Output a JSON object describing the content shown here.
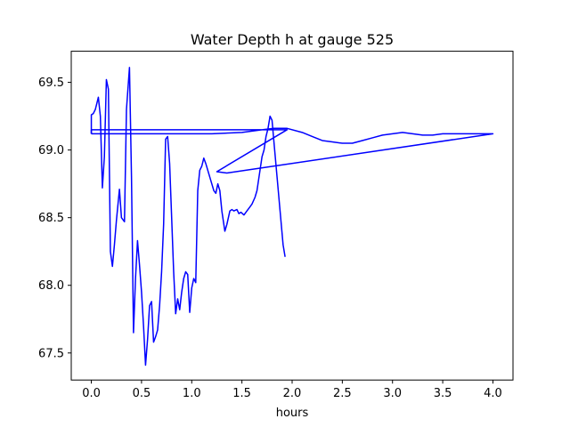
{
  "chart_data": {
    "type": "line",
    "title": "Water Depth h at gauge 525",
    "xlabel": "hours",
    "ylabel": "",
    "xlim": [
      -0.2,
      4.2
    ],
    "ylim": [
      67.3,
      69.73
    ],
    "xticks": [
      0.0,
      0.5,
      1.0,
      1.5,
      2.0,
      2.5,
      3.0,
      3.5,
      4.0
    ],
    "xtick_labels": [
      "0.0",
      "0.5",
      "1.0",
      "1.5",
      "2.0",
      "2.5",
      "3.0",
      "3.5",
      "4.0"
    ],
    "yticks": [
      67.5,
      68.0,
      68.5,
      69.0,
      69.5
    ],
    "ytick_labels": [
      "67.5",
      "68.0",
      "68.5",
      "69.0",
      "69.5"
    ],
    "grid": false,
    "legend": "none",
    "series": [
      {
        "color": "#0000ff",
        "x": [
          0.0,
          0.0,
          0.02,
          0.04,
          0.07,
          0.09,
          0.11,
          0.13,
          0.15,
          0.17,
          0.19,
          0.21,
          0.23,
          0.25,
          0.28,
          0.3,
          0.33,
          0.35,
          0.38,
          0.4,
          0.42,
          0.44,
          0.46,
          0.48,
          0.5,
          0.52,
          0.54,
          0.56,
          0.58,
          0.6,
          0.62,
          0.64,
          0.66,
          0.68,
          0.7,
          0.72,
          0.74,
          0.76,
          0.78,
          0.8,
          0.82,
          0.84,
          0.86,
          0.88,
          0.9,
          0.92,
          0.94,
          0.96,
          0.98,
          1.0,
          1.02,
          1.04,
          1.06,
          1.08,
          1.1,
          1.12,
          1.14,
          1.16,
          1.18,
          1.2,
          1.22,
          1.24,
          1.26,
          1.28,
          1.3,
          1.33,
          1.35,
          1.38,
          1.4,
          1.42,
          1.45,
          1.47,
          1.49,
          1.52,
          1.55,
          1.58,
          1.6,
          1.63,
          1.65,
          1.68,
          1.7,
          1.72,
          1.74,
          1.76,
          1.78,
          1.8,
          1.82,
          1.85,
          1.88,
          1.91,
          1.93
        ],
        "y": [
          69.12,
          69.26,
          69.27,
          69.3,
          69.39,
          69.25,
          68.72,
          68.95,
          69.52,
          69.45,
          68.25,
          68.14,
          68.3,
          68.48,
          68.71,
          68.5,
          68.47,
          69.3,
          69.61,
          68.8,
          67.65,
          68.05,
          68.33,
          68.15,
          67.95,
          67.7,
          67.41,
          67.6,
          67.85,
          67.88,
          67.58,
          67.62,
          67.67,
          67.85,
          68.1,
          68.45,
          69.08,
          69.1,
          68.9,
          68.5,
          68.1,
          67.79,
          67.9,
          67.82,
          67.95,
          68.05,
          68.1,
          68.08,
          67.8,
          67.98,
          68.05,
          68.02,
          68.7,
          68.85,
          68.88,
          68.94,
          68.9,
          68.85,
          68.8,
          68.75,
          68.7,
          68.68,
          68.75,
          68.7,
          68.55,
          68.4,
          68.45,
          68.55,
          68.56,
          68.55,
          68.56,
          68.53,
          68.54,
          68.52,
          68.55,
          68.58,
          68.6,
          68.65,
          68.7,
          68.85,
          68.95,
          69.0,
          69.1,
          69.16,
          69.25,
          69.22,
          69.05,
          68.8,
          68.55,
          68.3,
          68.21
        ]
      },
      {
        "color": "#0000ff",
        "x": [
          0.0,
          0.3,
          0.6,
          0.9,
          1.2,
          1.5,
          1.7,
          1.82,
          1.95,
          2.1,
          2.2,
          2.3,
          2.4,
          2.5,
          2.6,
          2.7,
          2.8,
          2.9,
          3.0,
          3.1,
          3.2,
          3.3,
          3.4,
          3.5,
          3.6,
          3.7,
          3.8,
          3.9,
          4.0,
          1.35,
          1.25,
          1.95,
          0.0,
          0.0
        ],
        "y": [
          69.12,
          69.12,
          69.12,
          69.12,
          69.12,
          69.13,
          69.15,
          69.16,
          69.16,
          69.13,
          69.1,
          69.07,
          69.06,
          69.05,
          69.05,
          69.07,
          69.09,
          69.11,
          69.12,
          69.13,
          69.12,
          69.11,
          69.11,
          69.12,
          69.12,
          69.12,
          69.12,
          69.12,
          69.12,
          68.83,
          68.84,
          69.15,
          69.15,
          69.12
        ]
      }
    ]
  }
}
